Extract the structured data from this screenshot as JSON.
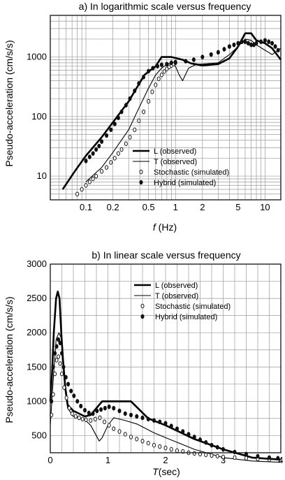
{
  "chart_data": [
    {
      "type": "line",
      "title": "a) In logarithmic scale versus frequency",
      "xlabel_italic": "f",
      "xlabel_rest": " (Hz)",
      "ylabel": "Pseudo-acceleration (cm/s/s)",
      "xscale": "log",
      "yscale": "log",
      "xlim": [
        0.04,
        15
      ],
      "ylim": [
        4,
        5000
      ],
      "grid": true,
      "legend_position": "lower-right",
      "x_ticks": [
        {
          "v": 0.1,
          "label": "0.1"
        },
        {
          "v": 0.2,
          "label": "0.2"
        },
        {
          "v": 0.5,
          "label": "0.5"
        },
        {
          "v": 1,
          "label": "1"
        },
        {
          "v": 2,
          "label": "2"
        },
        {
          "v": 5,
          "label": "5"
        },
        {
          "v": 10,
          "label": "10"
        }
      ],
      "y_ticks": [
        {
          "v": 10,
          "label": "10"
        },
        {
          "v": 100,
          "label": "100"
        },
        {
          "v": 1000,
          "label": "1000"
        }
      ],
      "series": [
        {
          "name": "L (observed)",
          "style": "thick-line",
          "x": [
            0.055,
            0.075,
            0.1,
            0.15,
            0.2,
            0.3,
            0.45,
            0.6,
            0.7,
            0.9,
            1.2,
            1.5,
            2.0,
            3.0,
            4.0,
            5.0,
            6.0,
            7.0,
            8.0,
            10.0,
            12.0,
            15.0
          ],
          "y": [
            6,
            12,
            22,
            45,
            80,
            180,
            500,
            700,
            1000,
            1000,
            900,
            780,
            720,
            760,
            950,
            1500,
            2500,
            2500,
            1900,
            1700,
            1400,
            900
          ]
        },
        {
          "name": "T (observed)",
          "style": "thin-line",
          "x": [
            0.1,
            0.15,
            0.2,
            0.3,
            0.4,
            0.5,
            0.6,
            0.7,
            0.8,
            0.9,
            1.0,
            1.1,
            1.2,
            1.4,
            1.7,
            2.0,
            3.0,
            4.0,
            5.0,
            6.0,
            7.0,
            8.0,
            10.0,
            12.0,
            15.0
          ],
          "y": [
            8,
            14,
            25,
            60,
            150,
            300,
            500,
            650,
            750,
            800,
            700,
            500,
            400,
            650,
            750,
            760,
            800,
            1100,
            1500,
            2000,
            1900,
            1600,
            1300,
            1100,
            1400
          ]
        },
        {
          "name": "Stochastic (simulated)",
          "style": "open-dot",
          "x": [
            0.08,
            0.09,
            0.1,
            0.11,
            0.12,
            0.13,
            0.15,
            0.17,
            0.19,
            0.21,
            0.23,
            0.25,
            0.28,
            0.31,
            0.35,
            0.39,
            0.44,
            0.5,
            0.55,
            0.6,
            0.65,
            0.7,
            0.75,
            0.8,
            0.85,
            0.9,
            0.95,
            1.0
          ],
          "y": [
            5,
            6,
            7,
            8,
            9,
            10,
            12,
            14,
            17,
            20,
            24,
            28,
            35,
            45,
            60,
            85,
            120,
            180,
            260,
            340,
            430,
            500,
            570,
            630,
            680,
            720,
            760,
            800
          ]
        },
        {
          "name": "Hybrid (simulated)",
          "style": "filled-dot",
          "x": [
            0.1,
            0.11,
            0.12,
            0.13,
            0.14,
            0.15,
            0.17,
            0.19,
            0.21,
            0.23,
            0.25,
            0.28,
            0.31,
            0.35,
            0.39,
            0.44,
            0.5,
            0.56,
            0.63,
            0.7,
            0.8,
            0.9,
            1.0,
            1.3,
            1.6,
            2.0,
            2.5,
            3.0,
            3.5,
            4.0,
            4.5,
            5.0,
            5.5,
            6.0,
            6.5,
            7.0,
            7.5,
            8.0,
            9.0,
            10.0,
            11.0,
            12.0,
            13.0,
            14.0
          ],
          "y": [
            18,
            21,
            24,
            28,
            32,
            38,
            48,
            60,
            75,
            95,
            120,
            155,
            200,
            270,
            360,
            460,
            580,
            650,
            700,
            740,
            760,
            800,
            820,
            850,
            900,
            1000,
            1100,
            1200,
            1350,
            1500,
            1600,
            1700,
            1800,
            1800,
            1700,
            1600,
            1600,
            1700,
            1800,
            1900,
            1800,
            1700,
            1500,
            1300
          ]
        }
      ]
    },
    {
      "type": "line",
      "title": "b) In linear scale versus frequency",
      "xlabel_italic": "T",
      "xlabel_rest": "(sec)",
      "ylabel": "Pseudo-acceleration (cm/s/s)",
      "xscale": "linear",
      "yscale": "linear",
      "xlim": [
        0,
        4
      ],
      "ylim": [
        250,
        3000
      ],
      "grid": true,
      "legend_position": "top-right",
      "x_ticks": [
        {
          "v": 0,
          "label": "0"
        },
        {
          "v": 1,
          "label": "1"
        },
        {
          "v": 2,
          "label": "2"
        },
        {
          "v": 3,
          "label": "3"
        },
        {
          "v": 4,
          "label": "4"
        }
      ],
      "y_ticks": [
        {
          "v": 500,
          "label": "500"
        },
        {
          "v": 1000,
          "label": "1000"
        },
        {
          "v": 1500,
          "label": "1500"
        },
        {
          "v": 2000,
          "label": "2000"
        },
        {
          "v": 2500,
          "label": "2500"
        },
        {
          "v": 3000,
          "label": "3000"
        }
      ],
      "series": [
        {
          "name": "L (observed)",
          "style": "thick-line",
          "x": [
            0.0,
            0.03,
            0.06,
            0.1,
            0.13,
            0.16,
            0.19,
            0.22,
            0.26,
            0.3,
            0.4,
            0.5,
            0.6,
            0.7,
            0.8,
            0.9,
            1.4,
            1.7,
            2.0,
            2.5,
            3.0,
            3.5,
            4.0
          ],
          "y": [
            1000,
            1400,
            2000,
            2500,
            2600,
            2500,
            2000,
            1600,
            1200,
            950,
            860,
            820,
            780,
            800,
            900,
            1000,
            1000,
            750,
            650,
            450,
            300,
            180,
            150
          ]
        },
        {
          "name": "T (observed)",
          "style": "thin-line",
          "x": [
            0.0,
            0.05,
            0.1,
            0.15,
            0.2,
            0.25,
            0.3,
            0.4,
            0.5,
            0.6,
            0.7,
            0.85,
            0.9,
            1.0,
            1.1,
            1.3,
            1.5,
            1.8,
            2.0,
            2.5,
            3.0,
            3.5,
            4.0
          ],
          "y": [
            650,
            1300,
            1900,
            2000,
            1900,
            1200,
            900,
            780,
            760,
            730,
            650,
            420,
            470,
            650,
            760,
            720,
            670,
            540,
            470,
            300,
            180,
            130,
            110
          ]
        },
        {
          "name": "Stochastic (simulated)",
          "style": "open-dot",
          "x": [
            0.02,
            0.05,
            0.08,
            0.11,
            0.14,
            0.17,
            0.2,
            0.24,
            0.28,
            0.33,
            0.38,
            0.44,
            0.5,
            0.56,
            0.62,
            0.7,
            0.78,
            0.86,
            0.94,
            1.02,
            1.1,
            1.2,
            1.3,
            1.4,
            1.5,
            1.6,
            1.7,
            1.8,
            1.9,
            2.0,
            2.1,
            2.2,
            2.3,
            2.4,
            2.5,
            2.6,
            2.7,
            2.8,
            2.9,
            3.0,
            3.2,
            3.4,
            3.6,
            3.8
          ],
          "y": [
            800,
            1100,
            1400,
            1600,
            1650,
            1550,
            1400,
            1200,
            1050,
            900,
            820,
            780,
            760,
            740,
            730,
            720,
            740,
            760,
            700,
            650,
            600,
            560,
            520,
            480,
            450,
            420,
            390,
            360,
            340,
            320,
            300,
            280,
            270,
            250,
            240,
            230,
            220,
            210,
            200,
            190,
            180,
            170,
            160,
            150
          ]
        },
        {
          "name": "Hybrid (simulated)",
          "style": "filled-dot",
          "x": [
            0.02,
            0.05,
            0.08,
            0.11,
            0.14,
            0.17,
            0.2,
            0.23,
            0.27,
            0.31,
            0.36,
            0.41,
            0.47,
            0.53,
            0.6,
            0.67,
            0.74,
            0.81,
            0.88,
            0.95,
            1.02,
            1.1,
            1.2,
            1.3,
            1.4,
            1.5,
            1.6,
            1.7,
            1.8,
            1.9,
            2.0,
            2.1,
            2.2,
            2.3,
            2.4,
            2.5,
            2.6,
            2.7,
            2.8,
            2.9,
            3.0,
            3.2,
            3.4,
            3.6,
            3.8,
            3.95
          ],
          "y": [
            1000,
            1500,
            1700,
            1800,
            1900,
            1850,
            1700,
            1500,
            1350,
            1250,
            1150,
            1080,
            1000,
            930,
            870,
            830,
            820,
            860,
            880,
            900,
            920,
            900,
            860,
            820,
            800,
            780,
            760,
            740,
            720,
            700,
            680,
            640,
            600,
            560,
            520,
            480,
            440,
            400,
            360,
            330,
            300,
            260,
            230,
            200,
            180,
            170
          ]
        }
      ]
    }
  ]
}
